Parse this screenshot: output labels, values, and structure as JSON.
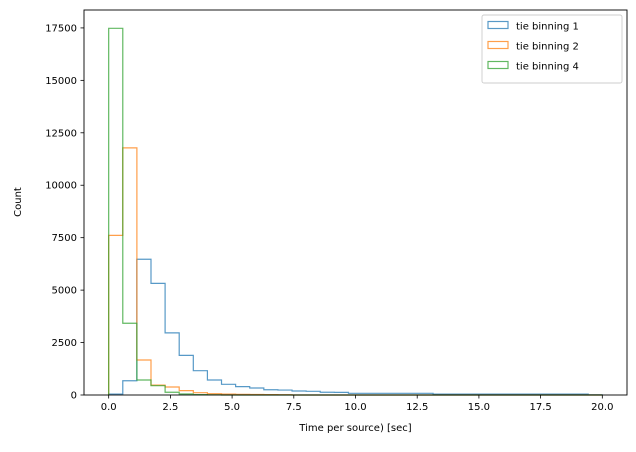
{
  "chart_data": {
    "type": "histogram",
    "title": "",
    "xlabel": "Time per source) [sec]",
    "ylabel": "Count",
    "xlim": [
      -1,
      21
    ],
    "ylim": [
      0,
      18354
    ],
    "bin_range": [
      0,
      20
    ],
    "bins": 35,
    "xticks": [
      0,
      2.5,
      5,
      7.5,
      10,
      12.5,
      15,
      17.5,
      20
    ],
    "xtick_labels": [
      "0.0",
      "2.5",
      "5.0",
      "7.5",
      "10.0",
      "12.5",
      "15.0",
      "17.5",
      "20.0"
    ],
    "yticks": [
      0,
      2500,
      5000,
      7500,
      10000,
      12500,
      15000,
      17500
    ],
    "ytick_labels": [
      "0",
      "2500",
      "5000",
      "7500",
      "10000",
      "12500",
      "15000",
      "17500"
    ],
    "grid": false,
    "legend_position": "top-right",
    "series": [
      {
        "name": "tie binning 1",
        "color": "#1f77b4",
        "values": [
          40,
          680,
          6470,
          5320,
          2960,
          1890,
          1160,
          715,
          510,
          400,
          335,
          250,
          235,
          190,
          175,
          130,
          125,
          80,
          80,
          80,
          80,
          80,
          80,
          45,
          45,
          45,
          45,
          45,
          45,
          45,
          45,
          45,
          45,
          45,
          10
        ]
      },
      {
        "name": "tie binning 2",
        "color": "#ff7f0e",
        "values": [
          7610,
          11780,
          1670,
          470,
          380,
          210,
          110,
          60,
          40,
          30,
          25,
          20,
          15,
          0,
          0,
          0,
          0,
          0,
          0,
          0,
          0,
          0,
          0,
          0,
          0,
          0,
          0,
          0,
          0,
          0,
          0,
          0,
          0,
          0,
          0
        ]
      },
      {
        "name": "tie binning 4",
        "color": "#2ca02c",
        "values": [
          17480,
          3420,
          715,
          445,
          130,
          50,
          20,
          10,
          0,
          0,
          0,
          0,
          0,
          0,
          0,
          0,
          0,
          0,
          0,
          0,
          0,
          0,
          0,
          0,
          0,
          0,
          0,
          0,
          0,
          0,
          0,
          0,
          0,
          0,
          0
        ]
      }
    ]
  }
}
